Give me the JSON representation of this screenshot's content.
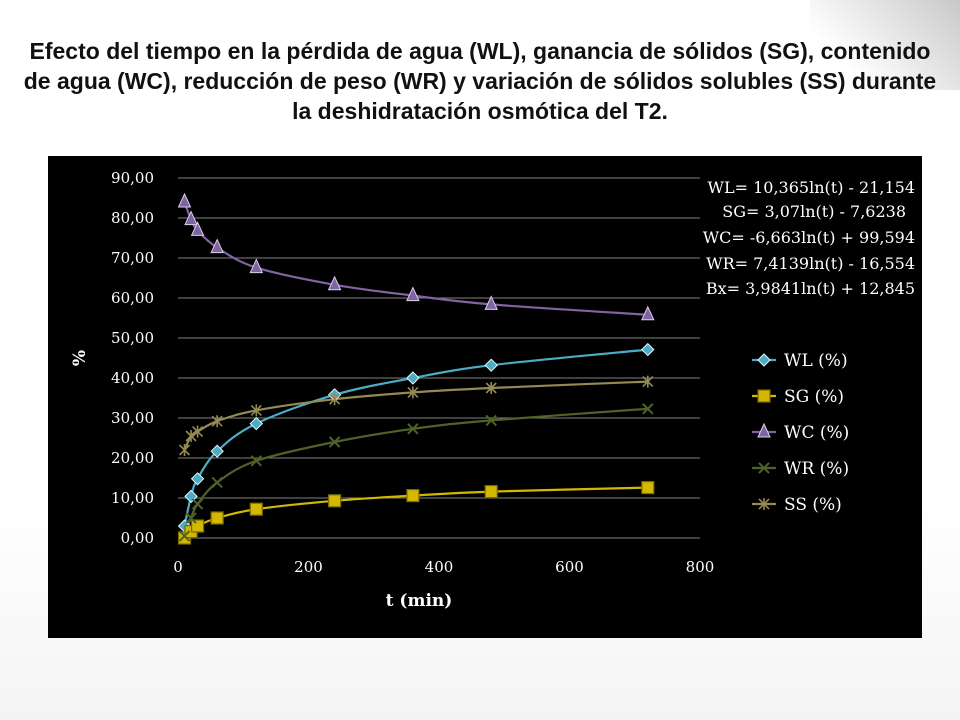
{
  "slide": {
    "title": "Efecto del tiempo en la pérdida de agua (WL), ganancia de sólidos (SG), contenido de agua (WC), reducción de peso (WR) y variación de sólidos solubles (SS) durante la deshidratación osmótica del T2."
  },
  "chart_data": {
    "type": "line",
    "title": "",
    "xlabel": "t (min)",
    "ylabel": "%",
    "xlim": [
      0,
      800
    ],
    "ylim": [
      0,
      90
    ],
    "x_ticks": [
      "0",
      "200",
      "400",
      "600",
      "800"
    ],
    "y_ticks": [
      "0,00",
      "10,00",
      "20,00",
      "30,00",
      "40,00",
      "50,00",
      "60,00",
      "70,00",
      "80,00",
      "90,00"
    ],
    "grid": "horizontal",
    "legend_position": "right",
    "series": [
      {
        "name": "WL (%)",
        "color": "#4bacc6",
        "marker": "diamond",
        "x": [
          10,
          20,
          30,
          60,
          120,
          240,
          360,
          480,
          720
        ],
        "y": [
          3.0,
          10.4,
          14.8,
          21.7,
          28.6,
          35.8,
          40.0,
          43.2,
          47.1
        ]
      },
      {
        "name": "SG (%)",
        "color": "#d4b800",
        "marker": "square",
        "x": [
          10,
          20,
          30,
          60,
          120,
          240,
          360,
          480,
          720
        ],
        "y": [
          0.0,
          1.6,
          3.0,
          5.0,
          7.2,
          9.3,
          10.6,
          11.6,
          12.6
        ]
      },
      {
        "name": "WC (%)",
        "color": "#8064a2",
        "marker": "triangle",
        "x": [
          10,
          20,
          30,
          60,
          120,
          240,
          360,
          480,
          720
        ],
        "y": [
          84.0,
          79.6,
          76.9,
          72.6,
          67.6,
          63.3,
          60.6,
          58.4,
          55.8
        ]
      },
      {
        "name": "WR (%)",
        "color": "#4f6228",
        "marker": "x",
        "x": [
          10,
          20,
          30,
          60,
          120,
          240,
          360,
          480,
          720
        ],
        "y": [
          0.5,
          5.0,
          8.5,
          13.9,
          19.3,
          24.0,
          27.3,
          29.4,
          32.3
        ]
      },
      {
        "name": "SS (%)",
        "color": "#948a54",
        "marker": "star",
        "x": [
          10,
          20,
          30,
          60,
          120,
          240,
          360,
          480,
          720
        ],
        "y": [
          22.0,
          25.5,
          26.6,
          29.2,
          31.9,
          34.7,
          36.4,
          37.5,
          39.1
        ]
      }
    ],
    "annotations": [
      "WL= 10,365ln(t) - 21,154",
      "SG= 3,07ln(t) - 7,6238",
      "WC= -6,663ln(t) + 99,594",
      "WR= 7,4139ln(t) - 16,554",
      "Bx= 3,9841ln(t) + 12,845"
    ]
  }
}
